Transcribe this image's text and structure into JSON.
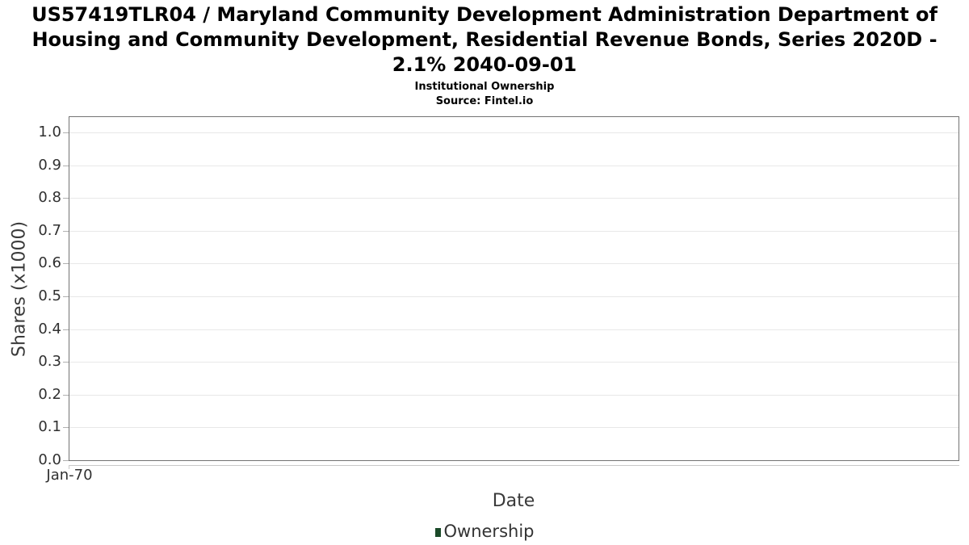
{
  "header": {
    "title": "US57419TLR04 / Maryland Community Development Administration Department of Housing and Community Development, Residential Revenue Bonds, Series 2020D - 2.1% 2040-09-01",
    "subtitle": "Institutional Ownership",
    "source": "Source: Fintel.io"
  },
  "chart_data": {
    "type": "line",
    "title": "US57419TLR04 / Maryland Community Development Administration Department of Housing and Community Development, Residential Revenue Bonds, Series 2020D - 2.1% 2040-09-01",
    "subtitle": "Institutional Ownership",
    "source": "Source: Fintel.io",
    "xlabel": "Date",
    "ylabel": "Shares (x1000)",
    "ylim": [
      0.0,
      1.047
    ],
    "y_ticks": [
      "1.0",
      "0.9",
      "0.8",
      "0.7",
      "0.6",
      "0.5",
      "0.4",
      "0.3",
      "0.2",
      "0.1",
      "0.0"
    ],
    "x_ticks": [
      "Jan-70"
    ],
    "grid": true,
    "legend_position": "bottom-center",
    "legend": [
      {
        "label": "Ownership",
        "color": "#1b4a29"
      }
    ],
    "series": [
      {
        "name": "Ownership",
        "x": [],
        "values": []
      }
    ]
  },
  "colors": {
    "plot_border": "#737373",
    "gridline": "#e8e8e8",
    "tick_mark": "#b0b0b0",
    "x_axis_line": "#c9c9c9",
    "legend_marker": "#1b4a29"
  }
}
